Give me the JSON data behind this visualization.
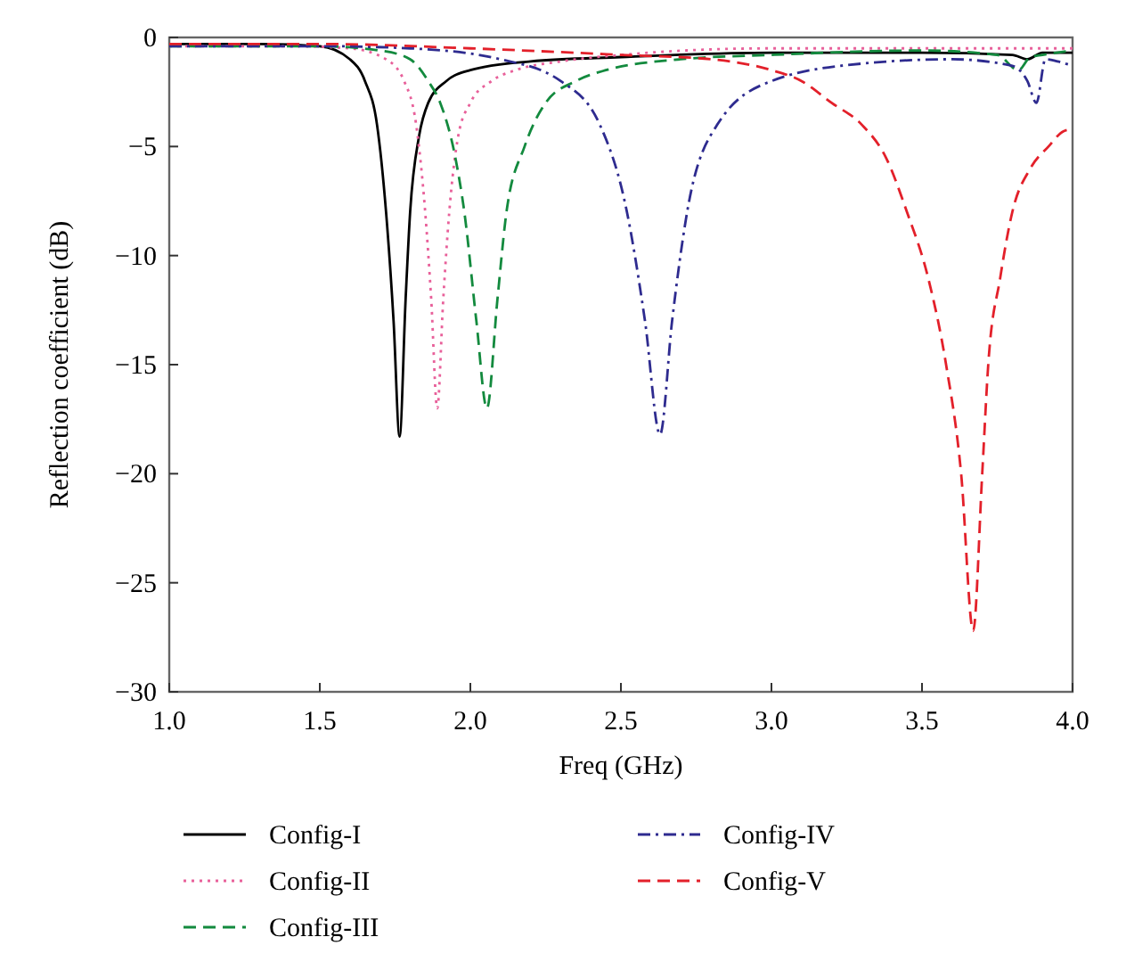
{
  "chart_data": {
    "type": "line",
    "xlabel": "Freq (GHz)",
    "ylabel": "Reflection coefficient (dB)",
    "xlim": [
      1,
      4
    ],
    "ylim": [
      -30,
      0
    ],
    "xticks": [
      {
        "value": 1,
        "label": "1.0"
      },
      {
        "value": 1.5,
        "label": "1.5"
      },
      {
        "value": 2,
        "label": "2.0"
      },
      {
        "value": 2.5,
        "label": "2.5"
      },
      {
        "value": 3,
        "label": "3.0"
      },
      {
        "value": 3.5,
        "label": "3.5"
      },
      {
        "value": 4,
        "label": "4.0"
      }
    ],
    "yticks": [
      {
        "value": -30,
        "label": "−30"
      },
      {
        "value": -25,
        "label": "−25"
      },
      {
        "value": -20,
        "label": "−20"
      },
      {
        "value": -15,
        "label": "−15"
      },
      {
        "value": -10,
        "label": "−10"
      },
      {
        "value": -5,
        "label": "−5"
      },
      0
    ],
    "grid": false,
    "legend": "bottom",
    "marker": "none",
    "series": [
      {
        "name": "Config-I",
        "color": "#000000",
        "line_style": "solid",
        "x": [
          1,
          1.3,
          1.5,
          1.6,
          1.65,
          1.69,
          1.72,
          1.745,
          1.765,
          1.785,
          1.8,
          1.83,
          1.86,
          1.92,
          2,
          2.2,
          2.5,
          3,
          3.5,
          3.8,
          3.85,
          3.9,
          4
        ],
        "values": [
          -0.3,
          -0.3,
          -0.4,
          -1,
          -2,
          -4,
          -8,
          -13,
          -18.3,
          -12,
          -8,
          -4.5,
          -3,
          -2,
          -1.5,
          -1.1,
          -0.9,
          -0.7,
          -0.7,
          -0.8,
          -1,
          -0.7,
          -0.7
        ]
      },
      {
        "name": "Config-II",
        "color": "#e8609a",
        "line_style": "dotted",
        "x": [
          1,
          1.4,
          1.6,
          1.72,
          1.78,
          1.82,
          1.85,
          1.87,
          1.89,
          1.91,
          1.93,
          1.96,
          2,
          2.07,
          2.15,
          2.3,
          2.5,
          3,
          3.5,
          4
        ],
        "values": [
          -0.4,
          -0.4,
          -0.5,
          -1,
          -2,
          -4,
          -8,
          -12,
          -17,
          -12,
          -8,
          -4.5,
          -3,
          -2,
          -1.5,
          -1.1,
          -0.8,
          -0.5,
          -0.5,
          -0.5
        ]
      },
      {
        "name": "Config-III",
        "color": "#138a3e",
        "line_style": "dashed",
        "x": [
          1,
          1.5,
          1.7,
          1.8,
          1.86,
          1.9,
          1.95,
          1.98,
          2.02,
          2.055,
          2.09,
          2.12,
          2.18,
          2.25,
          2.35,
          2.45,
          2.7,
          3,
          3.5,
          3.75,
          3.82,
          3.86,
          3.9,
          4
        ],
        "values": [
          -0.4,
          -0.4,
          -0.6,
          -1,
          -2,
          -3,
          -5.5,
          -8,
          -13,
          -17,
          -12,
          -8,
          -5,
          -3,
          -2,
          -1.5,
          -1,
          -0.8,
          -0.6,
          -0.8,
          -1.5,
          -0.9,
          -0.8,
          -0.6
        ]
      },
      {
        "name": "Config-IV",
        "color": "#2e2b8f",
        "line_style": "dashdot",
        "x": [
          1,
          1.5,
          1.8,
          2.1,
          2.3,
          2.43,
          2.52,
          2.58,
          2.63,
          2.67,
          2.72,
          2.82,
          3,
          3.3,
          3.6,
          3.8,
          3.85,
          3.88,
          3.91,
          3.95,
          4
        ],
        "values": [
          -0.4,
          -0.4,
          -0.5,
          -1,
          -2,
          -4,
          -8,
          -13,
          -18.2,
          -13,
          -8,
          -4,
          -2,
          -1.2,
          -1,
          -1.3,
          -2,
          -3,
          -1,
          -1.1,
          -1.3
        ]
      },
      {
        "name": "Config-V",
        "color": "#e3202a",
        "line_style": "dashed",
        "x": [
          1,
          1.5,
          2,
          2.5,
          2.8,
          3,
          3.1,
          3.2,
          3.3,
          3.38,
          3.45,
          3.52,
          3.58,
          3.63,
          3.67,
          3.7,
          3.72,
          3.76,
          3.8,
          3.86,
          3.92,
          3.97,
          4
        ],
        "values": [
          -0.3,
          -0.3,
          -0.5,
          -0.8,
          -1,
          -1.5,
          -2,
          -3,
          -4,
          -5.5,
          -8,
          -11,
          -15,
          -20,
          -27.2,
          -20,
          -15,
          -11,
          -8,
          -6,
          -5,
          -4.3,
          -4.2
        ]
      }
    ]
  }
}
